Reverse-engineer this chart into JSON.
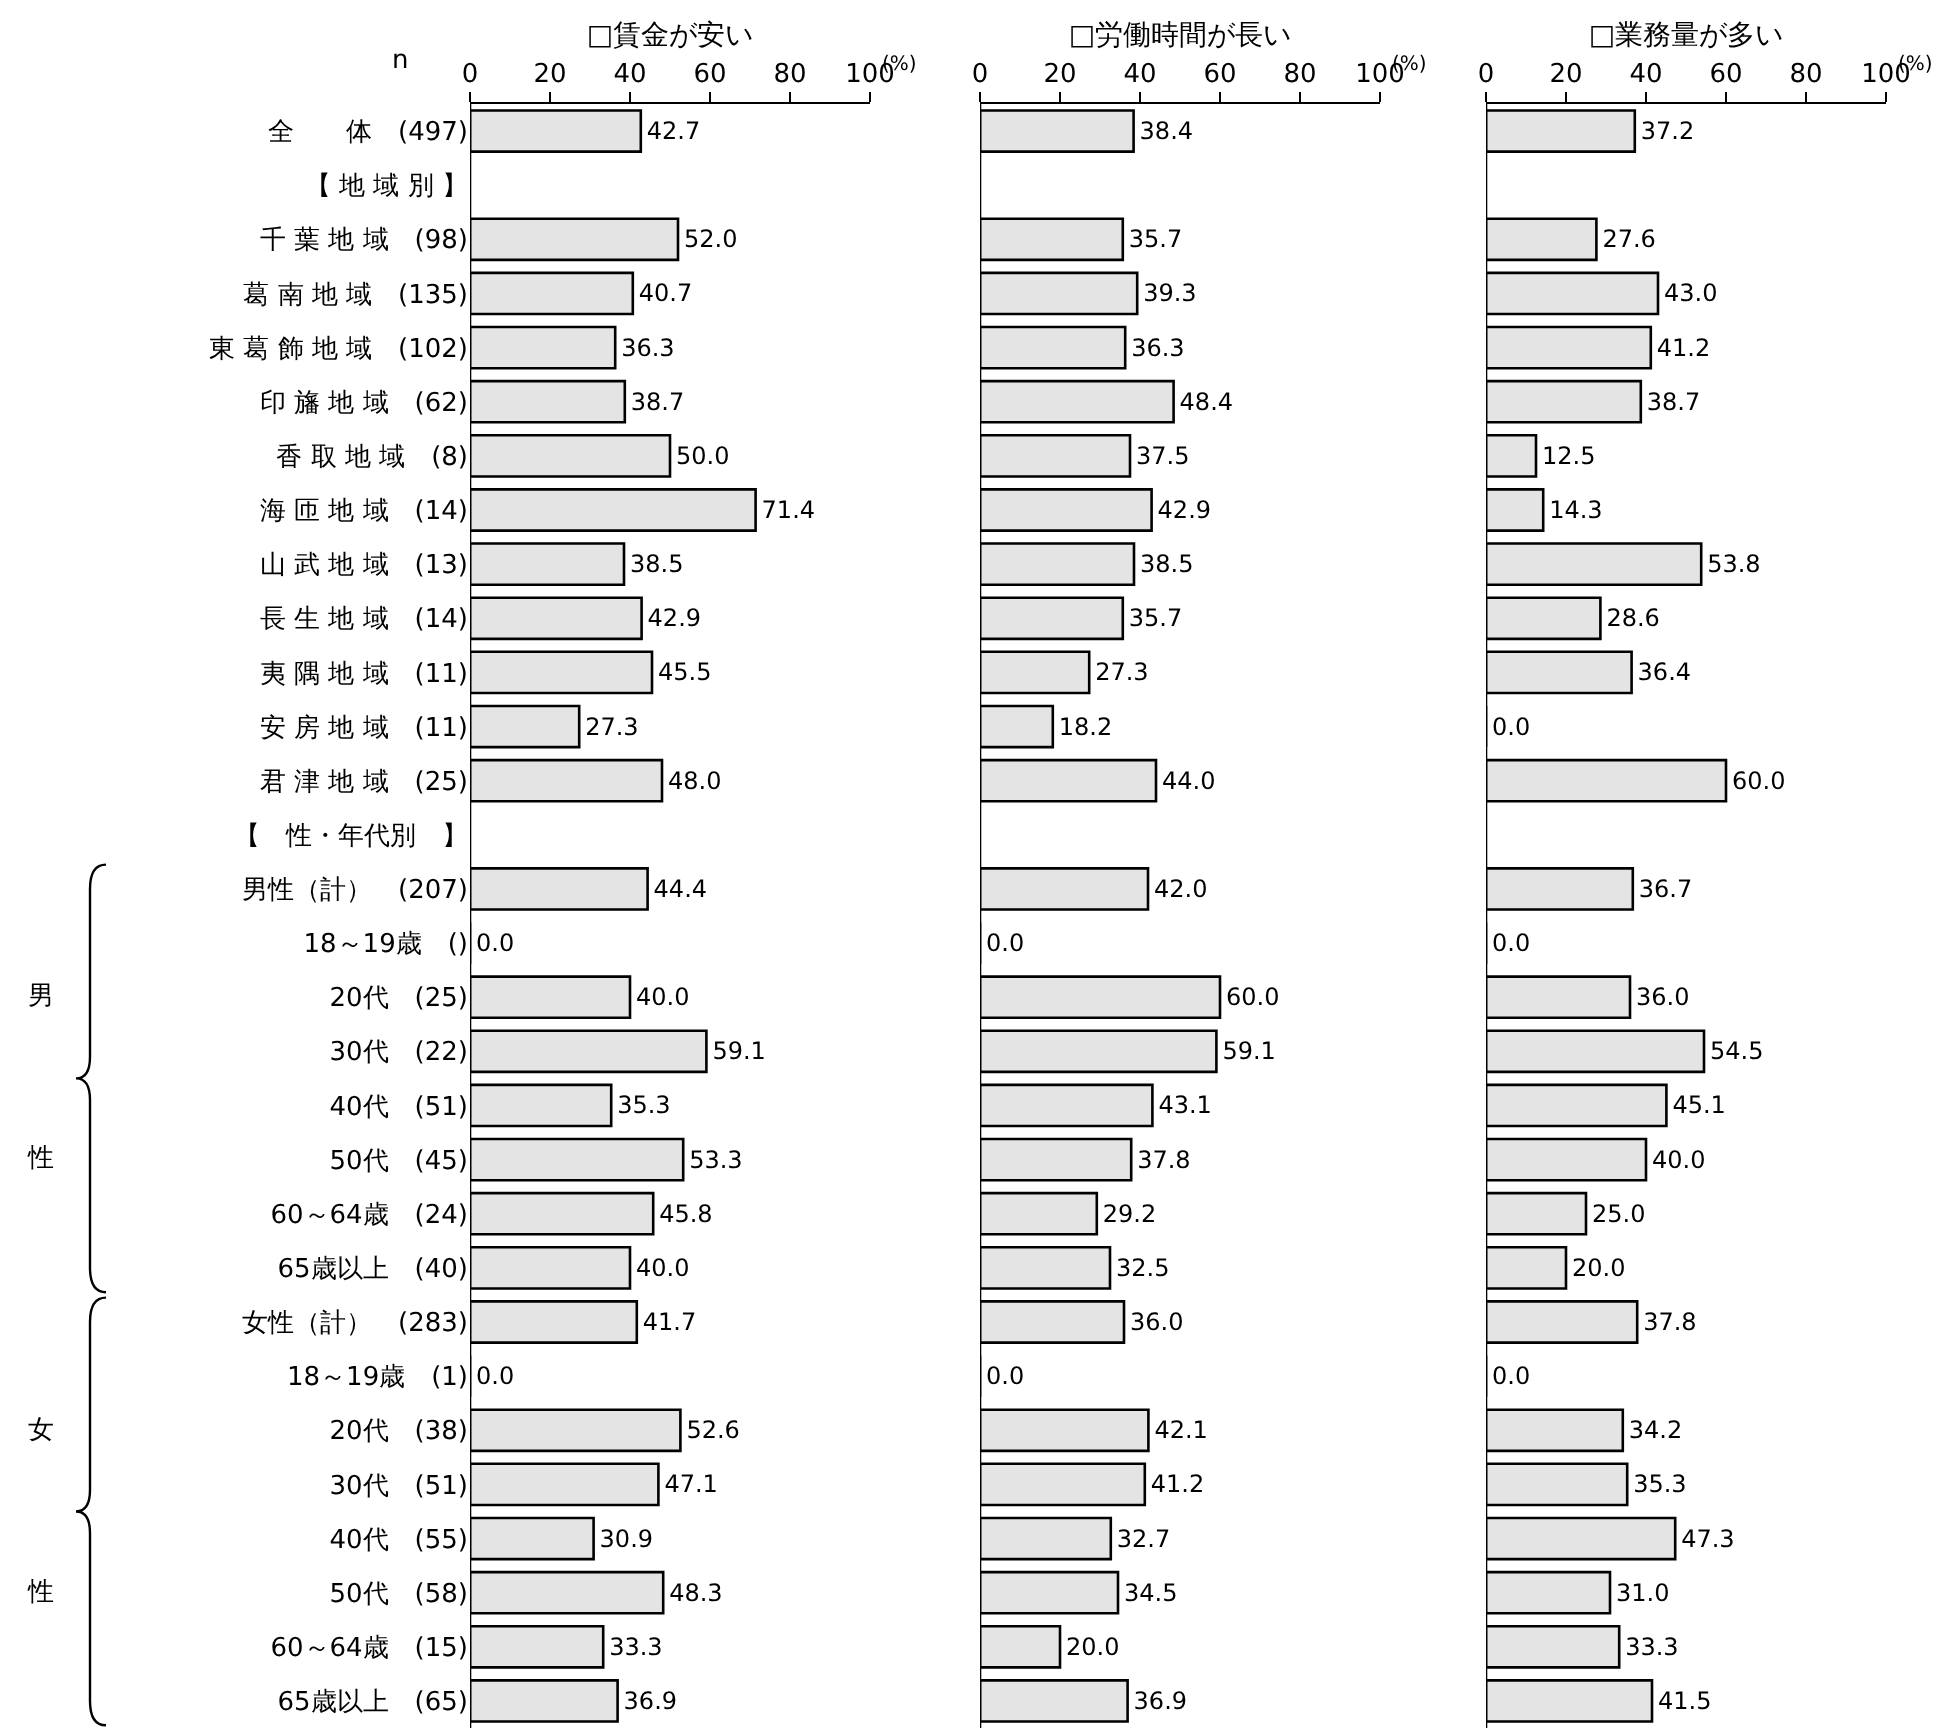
{
  "chart_data": [
    {
      "type": "bar",
      "orientation": "horizontal",
      "title": "□賃金が安い",
      "xlabel": "(%)",
      "color": "#e4e4e4",
      "categories": [
        "全　　体　(497)",
        "【 地 域 別 】",
        "千 葉 地 域　(98)",
        "葛 南 地 域　(135)",
        "東 葛 飾 地 域　(102)",
        "印 旛 地 域　(62)",
        "香 取 地 域　(8)",
        "海 匝 地 域　(14)",
        "山 武 地 域　(13)",
        "長 生 地 域　(14)",
        "夷 隅 地 域　(11)",
        "安 房 地 域　(11)",
        "君 津 地 域　(25)",
        "【　性・年代別　】",
        "男性（計）　(207)",
        "18～19歳　()",
        "20代　(25)",
        "30代　(22)",
        "40代　(51)",
        "50代　(45)",
        "60～64歳　(24)",
        "65歳以上　(40)",
        "女性（計）　(283)",
        "18～19歳　(1)",
        "20代　(38)",
        "30代　(51)",
        "40代　(55)",
        "50代　(58)",
        "60～64歳　(15)",
        "65歳以上　(65)"
      ],
      "values": [
        42.7,
        null,
        52.0,
        40.7,
        36.3,
        38.7,
        50.0,
        71.4,
        38.5,
        42.9,
        45.5,
        27.3,
        48.0,
        null,
        44.4,
        0.0,
        40.0,
        59.1,
        35.3,
        53.3,
        45.8,
        40.0,
        41.7,
        0.0,
        52.6,
        47.1,
        30.9,
        48.3,
        33.3,
        36.9
      ],
      "value_labels": [
        "42.7",
        null,
        "52.0",
        "40.7",
        "36.3",
        "38.7",
        "50.0",
        "71.4",
        "38.5",
        "42.9",
        "45.5",
        "27.3",
        "48.0",
        null,
        "44.4",
        "0.0",
        "40.0",
        "59.1",
        "35.3",
        "53.3",
        "45.8",
        "40.0",
        "41.7",
        "0.0",
        "52.6",
        "47.1",
        "30.9",
        "48.3",
        "33.3",
        "36.9"
      ],
      "xlim": [
        0,
        100
      ],
      "xticks": [
        0,
        20,
        40,
        60,
        80,
        100
      ],
      "annotations": [
        "n",
        "男",
        "性",
        "女",
        "性"
      ]
    },
    {
      "type": "bar",
      "orientation": "horizontal",
      "title": "□労働時間が長い",
      "xlabel": "(%)",
      "color": "#e4e4e4",
      "tick_labels": "x",
      "values": [
        38.4,
        null,
        35.7,
        39.3,
        36.3,
        48.4,
        37.5,
        42.9,
        38.5,
        35.7,
        27.3,
        18.2,
        44.0,
        null,
        42.0,
        0.0,
        60.0,
        59.1,
        43.1,
        37.8,
        29.2,
        32.5,
        36.0,
        0.0,
        42.1,
        41.2,
        32.7,
        34.5,
        20.0,
        36.9
      ],
      "value_labels": [
        "38.4",
        null,
        "35.7",
        "39.3",
        "36.3",
        "48.4",
        "37.5",
        "42.9",
        "38.5",
        "35.7",
        "27.3",
        "18.2",
        "44.0",
        null,
        "42.0",
        "0.0",
        "60.0",
        "59.1",
        "43.1",
        "37.8",
        "29.2",
        "32.5",
        "36.0",
        "0.0",
        "42.1",
        "41.2",
        "32.7",
        "34.5",
        "20.0",
        "36.9"
      ],
      "xlim": [
        0,
        100
      ],
      "xticks": [
        0,
        20,
        40,
        60,
        80,
        100
      ]
    },
    {
      "type": "bar",
      "orientation": "horizontal",
      "title": "□業務量が多い",
      "xlabel": "(%)",
      "color": "#e4e4e4",
      "tick_labels": "x",
      "values": [
        37.2,
        null,
        27.6,
        43.0,
        41.2,
        38.7,
        12.5,
        14.3,
        53.8,
        28.6,
        36.4,
        0.0,
        60.0,
        null,
        36.7,
        0.0,
        36.0,
        54.5,
        45.1,
        40.0,
        25.0,
        20.0,
        37.8,
        0.0,
        34.2,
        35.3,
        47.3,
        31.0,
        33.3,
        41.5
      ],
      "value_labels": [
        "37.2",
        null,
        "27.6",
        "43.0",
        "41.2",
        "38.7",
        "12.5",
        "14.3",
        "53.8",
        "28.6",
        "36.4",
        "0.0",
        "60.0",
        null,
        "36.7",
        "0.0",
        "36.0",
        "54.5",
        "45.1",
        "40.0",
        "25.0",
        "20.0",
        "37.8",
        "0.0",
        "34.2",
        "35.3",
        "47.3",
        "31.0",
        "33.3",
        "41.5"
      ],
      "xlim": [
        0,
        100
      ],
      "xticks": [
        0,
        20,
        40,
        60,
        80,
        100
      ]
    }
  ]
}
